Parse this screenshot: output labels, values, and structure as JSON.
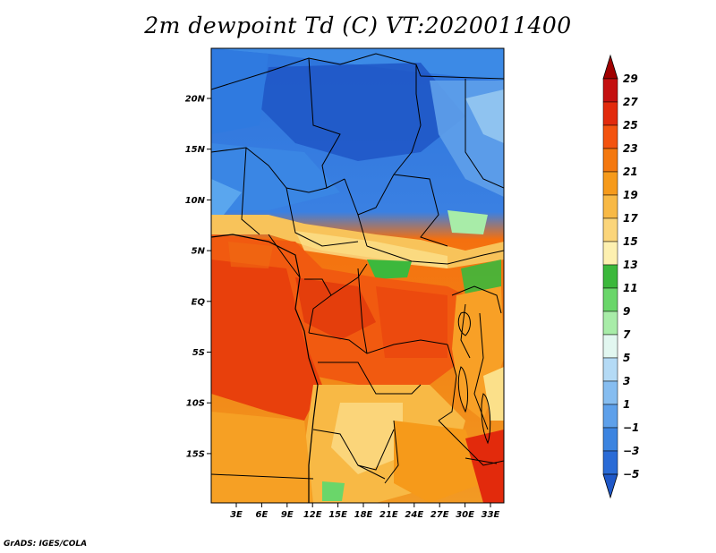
{
  "title": "2m dewpoint Td (C) VT:2020011400",
  "footer": "GrADS: IGES/COLA",
  "map": {
    "lat_labels": [
      "20N",
      "15N",
      "10N",
      "5N",
      "EQ",
      "5S",
      "10S",
      "15S"
    ],
    "lon_labels": [
      "3E",
      "6E",
      "9E",
      "12E",
      "15E",
      "18E",
      "21E",
      "24E",
      "27E",
      "30E",
      "33E"
    ]
  },
  "colorbar": {
    "labels": [
      "29",
      "27",
      "25",
      "23",
      "21",
      "19",
      "17",
      "15",
      "13",
      "11",
      "9",
      "7",
      "5",
      "3",
      "1",
      "−1",
      "−3",
      "−5"
    ],
    "colors": [
      "#a00000",
      "#c41010",
      "#e22a0c",
      "#f3530f",
      "#f4780f",
      "#f69a1a",
      "#f8b945",
      "#fbd57a",
      "#fdf0b0",
      "#3cb83c",
      "#6ad66a",
      "#a8eca8",
      "#e2f7f0",
      "#b4daf5",
      "#86bdf0",
      "#5ea0ea",
      "#3c84e0",
      "#2a6bd6",
      "#1f58c8"
    ]
  }
}
